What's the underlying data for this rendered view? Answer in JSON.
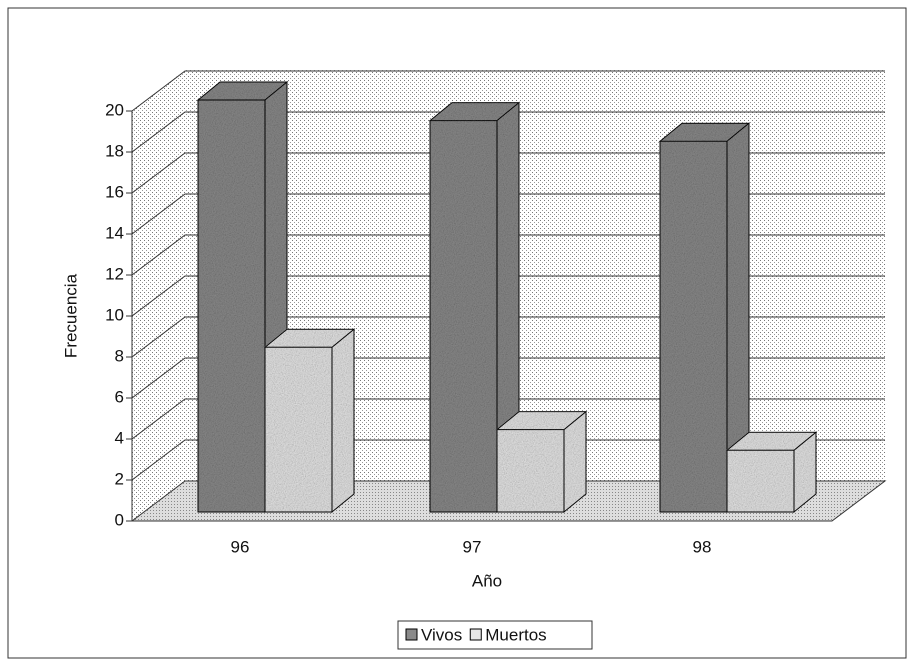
{
  "chart_data": {
    "type": "bar3d",
    "categories": [
      "96",
      "97",
      "98"
    ],
    "series": [
      {
        "name": "Vivos",
        "color": "#8a8a8a",
        "values": [
          20,
          19,
          18
        ]
      },
      {
        "name": "Muertos",
        "color": "#e6e6e6",
        "values": [
          8,
          4,
          3
        ]
      }
    ],
    "ylim": [
      0,
      20
    ],
    "yticks": [
      0,
      2,
      4,
      6,
      8,
      10,
      12,
      14,
      16,
      18,
      20
    ],
    "y_label": "Frecuencia",
    "x_label": "Año",
    "grid": true,
    "legend": "bottom"
  }
}
